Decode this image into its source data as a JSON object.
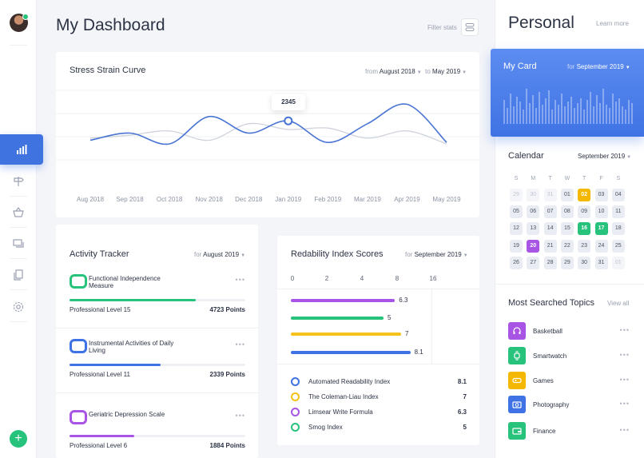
{
  "header": {
    "title": "My Dashboard",
    "filter_label": "Filter stats"
  },
  "nav": {
    "add_label": "+"
  },
  "stress": {
    "title": "Stress Strain Curve",
    "from_label": "from",
    "from_value": "August 2018",
    "to_label": "to",
    "to_value": "May 2019",
    "tooltip": "2345"
  },
  "chart_data": {
    "type": "line",
    "title": "Stress Strain Curve",
    "categories": [
      "Aug 2018",
      "Sep 2018",
      "Oct 2018",
      "Nov 2018",
      "Dec 2018",
      "Jan 2019",
      "Feb 2019",
      "Mar 2019",
      "Apr 2019",
      "May 2019"
    ],
    "series": [
      {
        "color": "#4a74d4",
        "values": [
          45,
          55,
          40,
          78,
          55,
          72,
          42,
          68,
          95,
          42
        ]
      },
      {
        "color": "#cfd3dc",
        "values": [
          48,
          52,
          58,
          45,
          68,
          60,
          62,
          48,
          58,
          40
        ]
      }
    ],
    "highlight": {
      "category": "Jan 2019",
      "label": "2345"
    },
    "ylim": [
      0,
      100
    ]
  },
  "activity": {
    "title": "Activity Tracker",
    "period_label": "for",
    "period_value": "August 2019",
    "items": [
      {
        "name": "Functional Independence Measure",
        "level": "Professional Level 15",
        "points": "4723 Points",
        "progress": 0.72,
        "color": "#27c27b"
      },
      {
        "name": "Instrumental Activities of Daily Living",
        "level": "Professional Level 11",
        "points": "2339 Points",
        "progress": 0.52,
        "color": "#3f72e4"
      },
      {
        "name": "Geriatric Depression Scale",
        "level": "Professional Level 6",
        "points": "1884 Points",
        "progress": 0.37,
        "color": "#a855e6"
      }
    ]
  },
  "readability": {
    "title": "Redability Index Scores",
    "period_label": "for",
    "period_value": "September 2019",
    "ticks": [
      "0",
      "2",
      "4",
      "8",
      "16"
    ],
    "bars": [
      {
        "label": "6.3",
        "value": 6.3,
        "color": "#a855e6"
      },
      {
        "label": "5",
        "value": 5,
        "color": "#27c27b"
      },
      {
        "label": "7",
        "value": 7,
        "color": "#f5c21a"
      },
      {
        "label": "8.1",
        "value": 8.1,
        "color": "#3f72e4"
      }
    ],
    "legend": [
      {
        "name": "Automated Readability Index",
        "value": "8.1",
        "color": "#3f72e4"
      },
      {
        "name": "The Coleman-Liau  Index",
        "value": "7",
        "color": "#f5c21a"
      },
      {
        "name": "Limsear  Write Formula",
        "value": "6.3",
        "color": "#a855e6"
      },
      {
        "name": "Smog Index",
        "value": "5",
        "color": "#27c27b"
      }
    ]
  },
  "personal": {
    "title": "Personal",
    "learn_more": "Learn more",
    "card_title": "My Card",
    "card_period_label": "for",
    "card_period_value": "September 2019"
  },
  "calendar": {
    "title": "Calendar",
    "month": "September 2019",
    "dow": [
      "S",
      "M",
      "T",
      "W",
      "T",
      "F",
      "S"
    ],
    "days": [
      [
        "29",
        "30",
        "31",
        "01",
        "02",
        "03",
        "04"
      ],
      [
        "05",
        "06",
        "07",
        "08",
        "09",
        "10",
        "11"
      ],
      [
        "12",
        "13",
        "14",
        "15",
        "16",
        "17",
        "18"
      ],
      [
        "19",
        "20",
        "21",
        "22",
        "23",
        "24",
        "25"
      ],
      [
        "26",
        "27",
        "28",
        "29",
        "30",
        "31",
        "01"
      ]
    ],
    "out_of_month": [
      [
        0,
        0
      ],
      [
        0,
        1
      ],
      [
        0,
        2
      ],
      [
        4,
        6
      ]
    ],
    "highlights": [
      {
        "row": 0,
        "col": 4,
        "color": "#f5b800"
      },
      {
        "row": 2,
        "col": 4,
        "color": "#27c27b"
      },
      {
        "row": 2,
        "col": 5,
        "color": "#27c27b"
      },
      {
        "row": 3,
        "col": 1,
        "color": "#a855e6"
      }
    ]
  },
  "topics": {
    "title": "Most Searched Topics",
    "view_all": "View all",
    "items": [
      {
        "name": "Basketball",
        "icon": "headphones-icon",
        "color": "#a855e6"
      },
      {
        "name": "Smartwatch",
        "icon": "watch-icon",
        "color": "#27c27b"
      },
      {
        "name": "Games",
        "icon": "gamepad-icon",
        "color": "#f5b800"
      },
      {
        "name": "Photography",
        "icon": "camera-icon",
        "color": "#3f72e4"
      },
      {
        "name": "Finance",
        "icon": "wallet-icon",
        "color": "#27c27b"
      }
    ]
  }
}
